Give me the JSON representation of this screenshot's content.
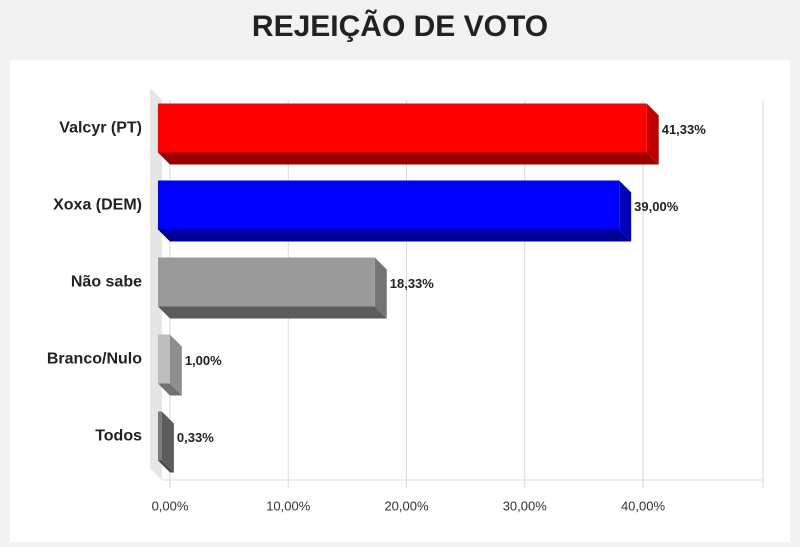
{
  "chart_data": {
    "type": "bar",
    "orientation": "horizontal",
    "title": "REJEIÇÃO DE VOTO",
    "categories": [
      "Valcyr (PT)",
      "Xoxa (DEM)",
      "Não sabe",
      "Branco/Nulo",
      "Todos"
    ],
    "values": [
      41.33,
      39.0,
      18.33,
      1.0,
      0.33
    ],
    "value_labels": [
      "41,33%",
      "39,00%",
      "18,33%",
      "1,00%",
      "0,33%"
    ],
    "colors": [
      "#ff0000",
      "#0000ff",
      "#9a9a9a",
      "#bdbdbd",
      "#7a7a7a"
    ],
    "xlim": [
      0,
      50
    ],
    "xticks": [
      {
        "value": 0,
        "label": "0,00%"
      },
      {
        "value": 10,
        "label": "10,00%"
      },
      {
        "value": 20,
        "label": "20,00%"
      },
      {
        "value": 30,
        "label": "30,00%"
      },
      {
        "value": 40,
        "label": "40,00%"
      }
    ],
    "grid": true
  }
}
